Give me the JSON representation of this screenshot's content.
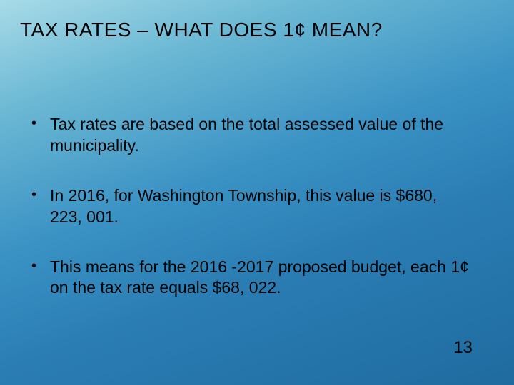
{
  "slide": {
    "title": "TAX RATES – WHAT DOES 1¢ MEAN?",
    "bullets": [
      "Tax rates are based on the total assessed value of the municipality.",
      "In 2016, for Washington Township, this value is $680, 223, 001.",
      "This means for the 2016 -2017 proposed budget, each 1¢ on the tax rate equals $68, 022."
    ],
    "page_number": "13",
    "background_gradient": {
      "stops": [
        "#a8dbe8",
        "#6bb8d4",
        "#3a92c4",
        "#2a7db3",
        "#1f6ba0"
      ],
      "angle_deg": 160
    },
    "title_color": "#000000",
    "body_color": "#000000",
    "title_fontsize": 28,
    "body_fontsize": 23,
    "pagenum_fontsize": 24
  }
}
